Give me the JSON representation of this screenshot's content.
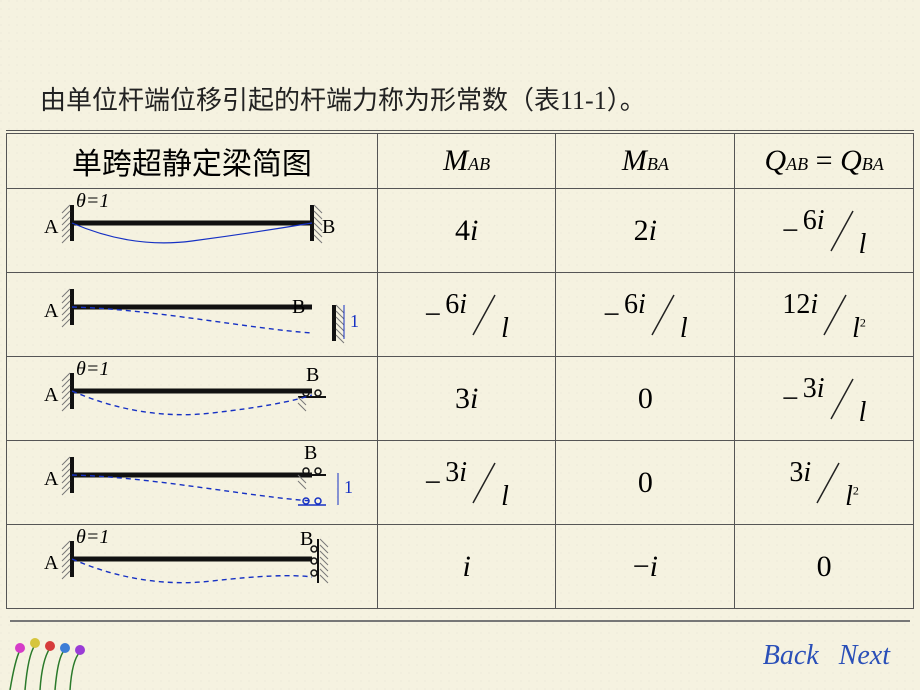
{
  "caption": "由单位杆端位移引起的杆端力称为形常数（表11-1）。",
  "headers": {
    "col1": "单跨超静定梁简图",
    "col2_main": "M",
    "col2_sub": "AB",
    "col3_main": "M",
    "col3_sub": "BA",
    "col4_left_main": "Q",
    "col4_left_sub": "AB",
    "col4_eq": "=",
    "col4_right_main": "Q",
    "col4_right_sub": "BA"
  },
  "rows": [
    {
      "diagram": {
        "type": "fixed-fixed-rotation",
        "leftLabel": "A",
        "rightLabel": "B",
        "theta": "θ=1",
        "endB": "fixed",
        "defl": "curve"
      },
      "m_ab": {
        "text": "4i",
        "type": "plain"
      },
      "m_ba": {
        "text": "2i",
        "type": "plain"
      },
      "q": {
        "sign": "−",
        "top": "6i",
        "bot": "l",
        "sq": false,
        "type": "frac"
      }
    },
    {
      "diagram": {
        "type": "fixed-fixed-translation",
        "leftLabel": "A",
        "rightLabel": "B",
        "delta": "1",
        "endB": "fixed-offset",
        "defl": "dash-slope"
      },
      "m_ab": {
        "sign": "−",
        "top": "6i",
        "bot": "l",
        "sq": false,
        "type": "frac"
      },
      "m_ba": {
        "sign": "−",
        "top": "6i",
        "bot": "l",
        "sq": false,
        "type": "frac"
      },
      "q": {
        "sign": "",
        "top": "12i",
        "bot": "l",
        "sq": true,
        "type": "frac"
      }
    },
    {
      "diagram": {
        "type": "fixed-roller-rotation",
        "leftLabel": "A",
        "rightLabel": "B",
        "theta": "θ=1",
        "endB": "roller",
        "defl": "dash-curve"
      },
      "m_ab": {
        "text": "3i",
        "type": "plain"
      },
      "m_ba": {
        "text": "0",
        "type": "plain"
      },
      "q": {
        "sign": "−",
        "top": "3i",
        "bot": "l",
        "sq": false,
        "type": "frac"
      }
    },
    {
      "diagram": {
        "type": "fixed-roller-translation",
        "leftLabel": "A",
        "rightLabel": "B",
        "delta": "1",
        "endB": "roller-offset",
        "defl": "dash-slope"
      },
      "m_ab": {
        "sign": "−",
        "top": "3i",
        "bot": "l",
        "sq": false,
        "type": "frac"
      },
      "m_ba": {
        "text": "0",
        "type": "plain"
      },
      "q": {
        "sign": "",
        "top": "3i",
        "bot": "l",
        "sq": true,
        "type": "frac"
      }
    },
    {
      "diagram": {
        "type": "fixed-slider-rotation",
        "leftLabel": "A",
        "rightLabel": "B",
        "theta": "θ=1",
        "endB": "slider",
        "defl": "dash-curve"
      },
      "m_ab": {
        "text": "i",
        "type": "plain"
      },
      "m_ba": {
        "text": "−i",
        "type": "plain"
      },
      "q": {
        "text": "0",
        "type": "plain"
      }
    }
  ],
  "nav": {
    "back": "Back",
    "next": "Next"
  },
  "colors": {
    "beam": "#111111",
    "curve": "#1631c4",
    "dash": "#1631c4",
    "hatch": "#777777",
    "border": "#555555"
  }
}
